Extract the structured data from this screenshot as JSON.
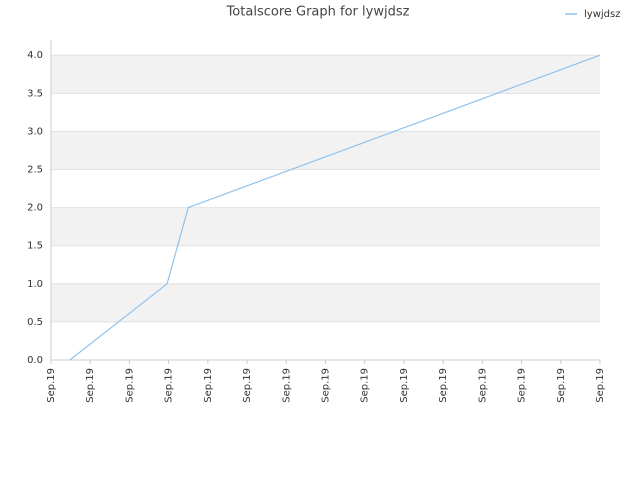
{
  "chart_data": {
    "type": "line",
    "title": "Totalscore Graph for lywjdsz",
    "x": [
      0.48,
      2.96,
      3.5,
      14
    ],
    "series": [
      {
        "name": "lywjdsz",
        "color": "#8ec3ef",
        "values": [
          0,
          1,
          2,
          4
        ]
      }
    ],
    "xlim": [
      0,
      14
    ],
    "xticks": [
      {
        "value": 0,
        "label": "Sep.19"
      },
      {
        "value": 1,
        "label": "Sep.19"
      },
      {
        "value": 2,
        "label": "Sep.19"
      },
      {
        "value": 3,
        "label": "Sep.19"
      },
      {
        "value": 4,
        "label": "Sep.19"
      },
      {
        "value": 5,
        "label": "Sep.19"
      },
      {
        "value": 6,
        "label": "Sep.19"
      },
      {
        "value": 7,
        "label": "Sep.19"
      },
      {
        "value": 8,
        "label": "Sep.19"
      },
      {
        "value": 9,
        "label": "Sep.19"
      },
      {
        "value": 10,
        "label": "Sep.19"
      },
      {
        "value": 11,
        "label": "Sep.19"
      },
      {
        "value": 12,
        "label": "Sep.19"
      },
      {
        "value": 13,
        "label": "Sep.19"
      },
      {
        "value": 14,
        "label": "Sep.19"
      }
    ],
    "ylim": [
      0,
      4.2
    ],
    "yticks": [
      {
        "value": 0,
        "label": "0.0"
      },
      {
        "value": 0.5,
        "label": "0.5"
      },
      {
        "value": 1,
        "label": "1.0"
      },
      {
        "value": 1.5,
        "label": "1.5"
      },
      {
        "value": 2,
        "label": "2.0"
      },
      {
        "value": 2.5,
        "label": "2.5"
      },
      {
        "value": 3,
        "label": "3.0"
      },
      {
        "value": 3.5,
        "label": "3.5"
      },
      {
        "value": 4,
        "label": "4.0"
      }
    ],
    "grid": true,
    "legend": "top-right"
  }
}
